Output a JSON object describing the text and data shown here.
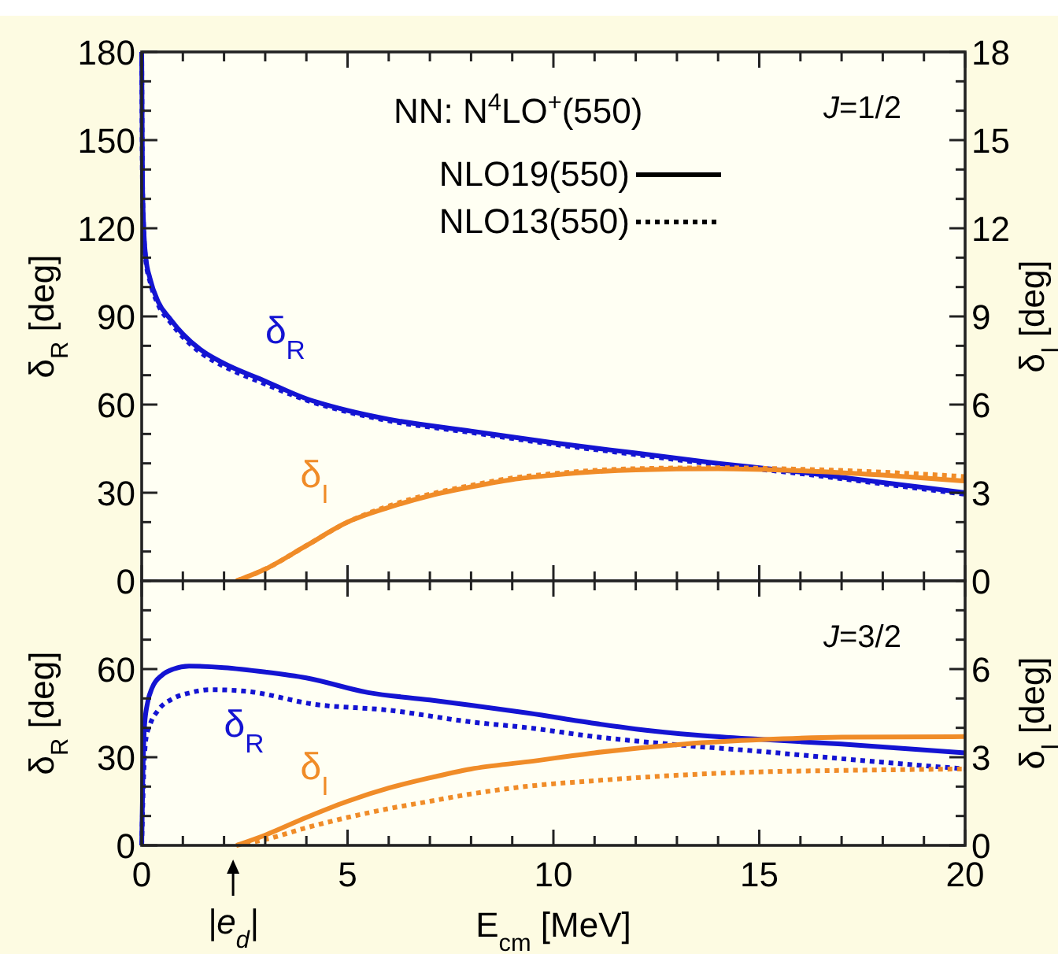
{
  "chart_data": [
    {
      "type": "line",
      "xlim": [
        0,
        20
      ],
      "xticks": [
        0,
        {
          "value": 1,
          "label": null
        },
        {
          "value": 2,
          "label": null
        },
        {
          "value": 3,
          "label": null
        },
        {
          "value": 4,
          "label": null
        },
        5,
        {
          "value": 6,
          "label": null
        },
        {
          "value": 7,
          "label": null
        },
        {
          "value": 8,
          "label": null
        },
        {
          "value": 9,
          "label": null
        },
        10,
        {
          "value": 11,
          "label": null
        },
        {
          "value": 12,
          "label": null
        },
        {
          "value": 13,
          "label": null
        },
        {
          "value": 14,
          "label": null
        },
        15,
        {
          "value": 16,
          "label": null
        },
        {
          "value": 17,
          "label": null
        },
        {
          "value": 18,
          "label": null
        },
        {
          "value": 19,
          "label": null
        },
        20
      ],
      "ylim": [
        0,
        180
      ],
      "yticks": [
        0,
        {
          "value": 10,
          "label": null
        },
        {
          "value": 20,
          "label": null
        },
        30,
        {
          "value": 40,
          "label": null
        },
        {
          "value": 50,
          "label": null
        },
        60,
        {
          "value": 70,
          "label": null
        },
        {
          "value": 80,
          "label": null
        },
        90,
        {
          "value": 100,
          "label": null
        },
        {
          "value": 110,
          "label": null
        },
        120,
        {
          "value": 130,
          "label": null
        },
        {
          "value": 140,
          "label": null
        },
        150,
        {
          "value": 160,
          "label": null
        },
        {
          "value": 170,
          "label": null
        },
        180
      ],
      "y2lim": [
        0,
        18
      ],
      "y2ticks": [
        0,
        {
          "value": 1,
          "label": null
        },
        {
          "value": 2,
          "label": null
        },
        3,
        {
          "value": 4,
          "label": null
        },
        {
          "value": 5,
          "label": null
        },
        6,
        {
          "value": 7,
          "label": null
        },
        {
          "value": 8,
          "label": null
        },
        9,
        {
          "value": 10,
          "label": null
        },
        {
          "value": 11,
          "label": null
        },
        12,
        {
          "value": 13,
          "label": null
        },
        {
          "value": 14,
          "label": null
        },
        15,
        {
          "value": 16,
          "label": null
        },
        {
          "value": 17,
          "label": null
        },
        18
      ],
      "tick_labels": "y",
      "ylabel": "δ$_{R}$ [deg]",
      "y2label": "δ$_{I}$ [deg]",
      "annotations": [
        "NN: N$^{4}$LO$^{+}$(550)",
        "NLO19(550)",
        "NLO13(550)",
        "J=1/2"
      ],
      "series": [
        {
          "name": "δ$_{R}$",
          "color": "#1414d2",
          "line_style": "solid",
          "x": [
            0,
            0.02,
            0.05,
            0.1,
            0.2,
            0.4,
            0.7,
            1,
            1.5,
            2,
            3,
            4,
            5,
            6,
            8,
            10,
            12,
            14,
            16,
            18,
            20
          ],
          "values": [
            180,
            135,
            120,
            110,
            103,
            95,
            89,
            84,
            78,
            74,
            68,
            62,
            58,
            55,
            51,
            47,
            43.5,
            40,
            37,
            33.5,
            30
          ]
        },
        {
          "color": "#1414d2",
          "line_style": "dotted",
          "x": [
            0,
            0.02,
            0.05,
            0.1,
            0.2,
            0.4,
            0.7,
            1,
            1.5,
            2,
            3,
            4,
            5,
            6,
            8,
            10,
            12,
            14,
            16,
            18,
            20
          ],
          "values": [
            180,
            134,
            119,
            109,
            102,
            94,
            88,
            83,
            77,
            73,
            67,
            61.5,
            57.5,
            54.5,
            50.5,
            46.5,
            43,
            39.5,
            36.5,
            33,
            29.5
          ]
        },
        {
          "name": "δ$_{I}$",
          "color": "#f08c28",
          "axis": "y2",
          "line_style": "solid",
          "x": [
            2.3,
            3,
            4,
            5,
            6,
            7,
            8,
            9,
            10,
            12,
            14,
            16,
            18,
            20
          ],
          "values": [
            0,
            0.4,
            1.2,
            2.0,
            2.5,
            2.9,
            3.2,
            3.45,
            3.6,
            3.78,
            3.82,
            3.75,
            3.6,
            3.4
          ]
        },
        {
          "color": "#f08c28",
          "axis": "y2",
          "line_style": "dotted",
          "x": [
            2.3,
            3,
            4,
            5,
            6,
            7,
            8,
            9,
            10,
            12,
            14,
            16,
            18,
            20
          ],
          "values": [
            0,
            0.4,
            1.2,
            2.0,
            2.55,
            2.95,
            3.25,
            3.5,
            3.65,
            3.82,
            3.85,
            3.8,
            3.7,
            3.55
          ]
        }
      ]
    },
    {
      "type": "line",
      "xlim": [
        0,
        20
      ],
      "xticks": [
        0,
        {
          "value": 1,
          "label": null
        },
        {
          "value": 2,
          "label": null
        },
        {
          "value": 3,
          "label": null
        },
        {
          "value": 4,
          "label": null
        },
        5,
        {
          "value": 6,
          "label": null
        },
        {
          "value": 7,
          "label": null
        },
        {
          "value": 8,
          "label": null
        },
        {
          "value": 9,
          "label": null
        },
        10,
        {
          "value": 11,
          "label": null
        },
        {
          "value": 12,
          "label": null
        },
        {
          "value": 13,
          "label": null
        },
        {
          "value": 14,
          "label": null
        },
        15,
        {
          "value": 16,
          "label": null
        },
        {
          "value": 17,
          "label": null
        },
        {
          "value": 18,
          "label": null
        },
        {
          "value": 19,
          "label": null
        },
        20
      ],
      "ylim": [
        0,
        90
      ],
      "yticks": [
        0,
        {
          "value": 10,
          "label": null
        },
        {
          "value": 20,
          "label": null
        },
        30,
        {
          "value": 40,
          "label": null
        },
        {
          "value": 50,
          "label": null
        },
        60,
        {
          "value": 70,
          "label": null
        },
        {
          "value": 80,
          "label": null
        },
        {
          "value": 90,
          "label": null
        }
      ],
      "y2lim": [
        0,
        9
      ],
      "y2ticks": [
        0,
        {
          "value": 1,
          "label": null
        },
        {
          "value": 2,
          "label": null
        },
        3,
        {
          "value": 4,
          "label": null
        },
        {
          "value": 5,
          "label": null
        },
        6,
        {
          "value": 7,
          "label": null
        },
        {
          "value": 8,
          "label": null
        },
        {
          "value": 9,
          "label": null
        }
      ],
      "xlabel": "E$_{cm}$ [MeV]",
      "ylabel": "δ$_{R}$ [deg]",
      "y2label": "δ$_{I}$ [deg]",
      "annotations": [
        "J=3/2",
        {
          "text": "|e$_{d}$|",
          "x": 2.22,
          "y": 0
        }
      ],
      "series": [
        {
          "name": "δ$_{R}$",
          "color": "#1414d2",
          "line_style": "solid",
          "x": [
            0,
            0.03,
            0.07,
            0.15,
            0.25,
            0.5,
            0.77,
            1.15,
            2,
            3,
            4,
            5.5,
            7,
            8,
            9.4,
            11,
            12,
            13.5,
            15.1,
            17,
            20
          ],
          "values": [
            0,
            25,
            41,
            49,
            53.5,
            58,
            60,
            61,
            60.5,
            59,
            57,
            52,
            49.5,
            47.7,
            45,
            41.5,
            39.6,
            37.5,
            36,
            34.5,
            31.5
          ]
        },
        {
          "color": "#1414d2",
          "line_style": "dotted",
          "x": [
            0,
            0.05,
            0.1,
            0.2,
            0.4,
            0.77,
            1.2,
            1.65,
            2.5,
            4.2,
            6,
            8,
            9.4,
            11,
            13.2,
            15,
            17,
            20
          ],
          "values": [
            0,
            25,
            36,
            41,
            46,
            50,
            52,
            53,
            52.5,
            48,
            46,
            42,
            40,
            37,
            34,
            32,
            29.5,
            26
          ]
        },
        {
          "name": "δ$_{I}$",
          "color": "#f08c28",
          "axis": "y2",
          "line_style": "solid",
          "x": [
            2.3,
            3,
            4,
            5,
            6,
            7,
            8,
            9.4,
            11,
            13.2,
            15.1,
            17,
            20
          ],
          "values": [
            0,
            0.35,
            0.95,
            1.5,
            1.95,
            2.3,
            2.6,
            2.85,
            3.15,
            3.45,
            3.6,
            3.68,
            3.7
          ]
        },
        {
          "color": "#f08c28",
          "axis": "y2",
          "line_style": "dotted",
          "x": [
            2.3,
            3,
            4,
            5,
            6,
            7,
            8,
            9.3,
            11,
            13.2,
            15,
            17,
            20
          ],
          "values": [
            0,
            0.2,
            0.6,
            0.95,
            1.25,
            1.5,
            1.75,
            2.0,
            2.2,
            2.4,
            2.5,
            2.55,
            2.6
          ]
        }
      ]
    }
  ]
}
